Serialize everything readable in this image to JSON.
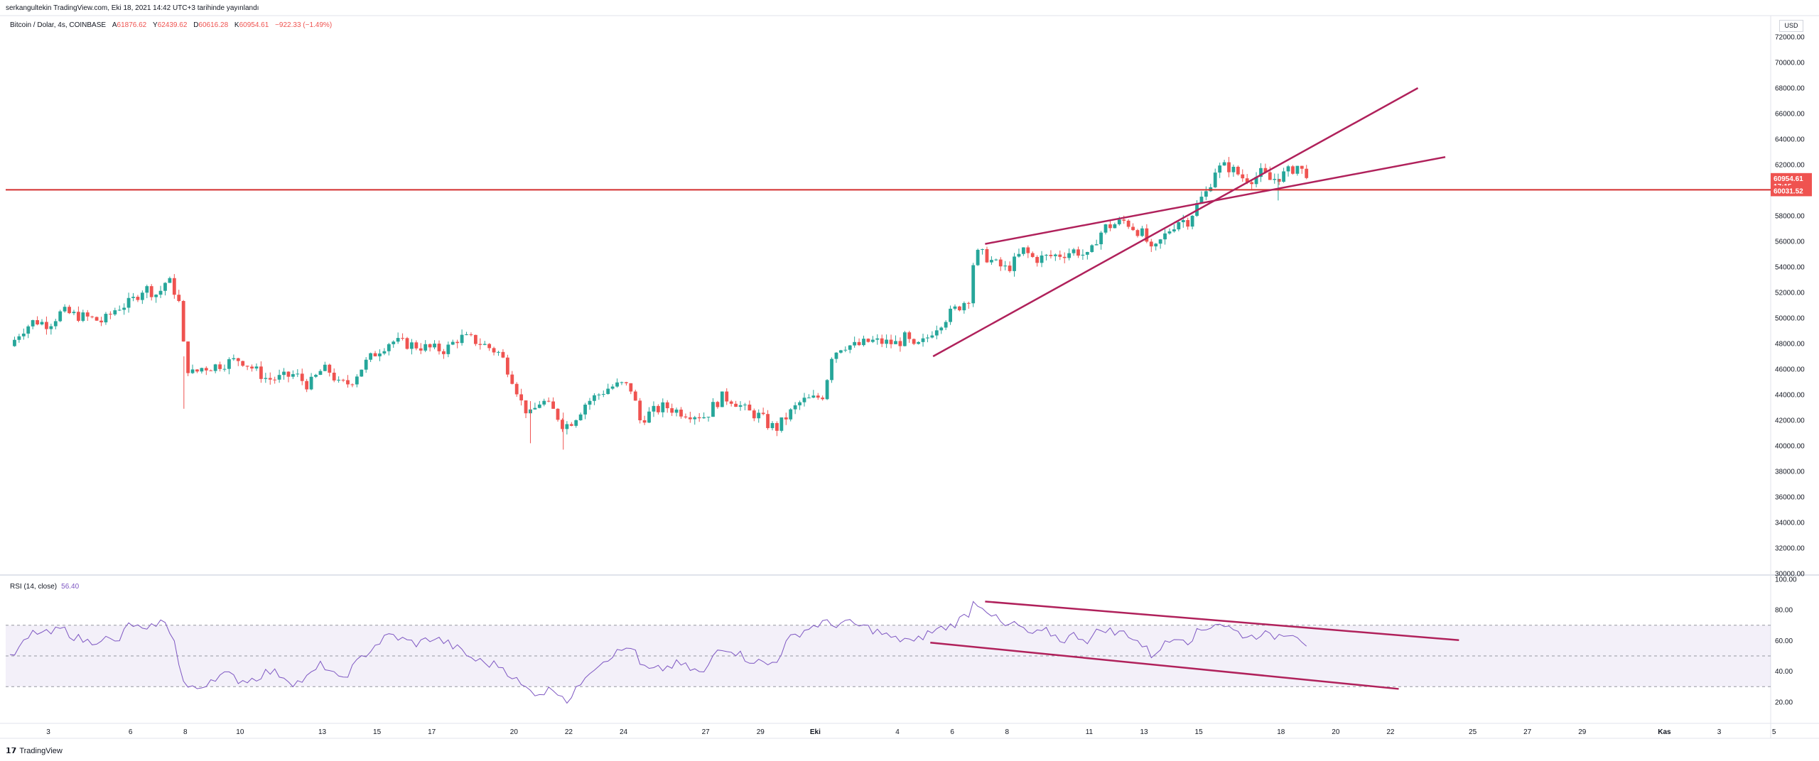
{
  "header": {
    "published": "serkangultekin TradingView.com, Eki 18, 2021 14:42 UTC+3 tarihinde yayınlandı",
    "symbol": "Bitcoin / Dolar, 4s, COINBASE",
    "open_label": "A",
    "open": "61876.62",
    "high_label": "Y",
    "high": "62439.62",
    "low_label": "D",
    "low": "60616.28",
    "close_label": "K",
    "close": "60954.61",
    "change": "−922.33 (−1.49%)",
    "currency": "USD"
  },
  "rsi_legend": {
    "label": "RSI (14, close)",
    "value": "56.40"
  },
  "footer": {
    "logo_mark": "𝟭𝟳",
    "logo_text": "TradingView"
  },
  "price_tags": [
    {
      "value": "60954.61",
      "text": [
        "60954.61",
        "17:15"
      ],
      "color": "#ef5350"
    },
    {
      "value": "60031.52",
      "text": [
        "60031.52"
      ],
      "color": "#ef5350"
    }
  ],
  "chart_data": [
    {
      "type": "candlestick",
      "title": "Bitcoin / Dolar, 4s, COINBASE",
      "ylim": [
        30000,
        72000
      ],
      "y_ticks": [
        "72000.00",
        "70000.00",
        "68000.00",
        "66000.00",
        "64000.00",
        "62000.00",
        "60000.00",
        "58000.00",
        "56000.00",
        "54000.00",
        "52000.00",
        "50000.00",
        "48000.00",
        "46000.00",
        "44000.00",
        "42000.00",
        "40000.00",
        "38000.00",
        "36000.00",
        "34000.00",
        "32000.00",
        "30000.00"
      ],
      "x_ticks": [
        {
          "label": "3",
          "day": 0
        },
        {
          "label": "6",
          "day": 3
        },
        {
          "label": "8",
          "day": 5
        },
        {
          "label": "10",
          "day": 7
        },
        {
          "label": "13",
          "day": 10
        },
        {
          "label": "15",
          "day": 12
        },
        {
          "label": "17",
          "day": 14
        },
        {
          "label": "20",
          "day": 17
        },
        {
          "label": "22",
          "day": 19
        },
        {
          "label": "24",
          "day": 21
        },
        {
          "label": "27",
          "day": 24
        },
        {
          "label": "29",
          "day": 26
        },
        {
          "label": "Eki",
          "day": 28
        },
        {
          "label": "4",
          "day": 31
        },
        {
          "label": "6",
          "day": 33
        },
        {
          "label": "8",
          "day": 35
        },
        {
          "label": "11",
          "day": 38
        },
        {
          "label": "13",
          "day": 40
        },
        {
          "label": "15",
          "day": 42
        },
        {
          "label": "18",
          "day": 45
        },
        {
          "label": "20",
          "day": 47
        },
        {
          "label": "22",
          "day": 49
        },
        {
          "label": "25",
          "day": 52
        },
        {
          "label": "27",
          "day": 54
        },
        {
          "label": "29",
          "day": 56
        },
        {
          "label": "Kas",
          "day": 59
        },
        {
          "label": "3",
          "day": 61
        },
        {
          "label": "5",
          "day": 63
        }
      ],
      "x_unit": "days since 3 Sep 2021 (4h candles)",
      "close_path": [
        [
          -1.4,
          47800
        ],
        [
          -1.0,
          49000
        ],
        [
          -0.5,
          49800
        ],
        [
          0,
          49500
        ],
        [
          0.5,
          50500
        ],
        [
          1,
          50200
        ],
        [
          1.5,
          50000
        ],
        [
          2,
          49700
        ],
        [
          2.5,
          50800
        ],
        [
          3,
          51200
        ],
        [
          3.5,
          52400
        ],
        [
          4,
          51800
        ],
        [
          4.3,
          52900
        ],
        [
          4.5,
          52700
        ],
        [
          4.8,
          51000
        ],
        [
          5.0,
          46300
        ],
        [
          5.3,
          45600
        ],
        [
          5.6,
          46100
        ],
        [
          6,
          46200
        ],
        [
          6.5,
          46500
        ],
        [
          7,
          46800
        ],
        [
          7.5,
          46000
        ],
        [
          8,
          45200
        ],
        [
          8.5,
          45300
        ],
        [
          9,
          45600
        ],
        [
          9.5,
          44700
        ],
        [
          10,
          46000
        ],
        [
          10.3,
          45800
        ],
        [
          10.6,
          44800
        ],
        [
          11,
          44900
        ],
        [
          11.5,
          46300
        ],
        [
          12,
          47400
        ],
        [
          12.5,
          48200
        ],
        [
          13,
          48000
        ],
        [
          13.5,
          47800
        ],
        [
          14,
          47600
        ],
        [
          14.5,
          47500
        ],
        [
          15,
          48500
        ],
        [
          15.5,
          48300
        ],
        [
          16,
          47800
        ],
        [
          16.5,
          47200
        ],
        [
          17,
          45000
        ],
        [
          17.3,
          43200
        ],
        [
          17.6,
          42400
        ],
        [
          18,
          43600
        ],
        [
          18.5,
          42600
        ],
        [
          18.8,
          41600
        ],
        [
          19,
          41700
        ],
        [
          19.3,
          42400
        ],
        [
          19.6,
          43300
        ],
        [
          20,
          43900
        ],
        [
          20.5,
          44600
        ],
        [
          21,
          44800
        ],
        [
          21.3,
          44400
        ],
        [
          21.6,
          42000
        ],
        [
          22,
          42600
        ],
        [
          22.5,
          43100
        ],
        [
          23,
          42700
        ],
        [
          23.5,
          42500
        ],
        [
          24,
          42300
        ],
        [
          24.3,
          43200
        ],
        [
          24.6,
          43800
        ],
        [
          25,
          43600
        ],
        [
          25.5,
          42700
        ],
        [
          26,
          42300
        ],
        [
          26.3,
          41600
        ],
        [
          26.6,
          41400
        ],
        [
          27,
          42400
        ],
        [
          27.5,
          43500
        ],
        [
          28,
          43700
        ],
        [
          28.3,
          44000
        ],
        [
          28.6,
          47100
        ],
        [
          29,
          47900
        ],
        [
          29.5,
          47800
        ],
        [
          30,
          48200
        ],
        [
          30.5,
          48100
        ],
        [
          31,
          48000
        ],
        [
          31.3,
          48500
        ],
        [
          31.6,
          47600
        ],
        [
          32,
          48200
        ],
        [
          32.3,
          49100
        ],
        [
          32.6,
          49700
        ],
        [
          33,
          50500
        ],
        [
          33.3,
          51000
        ],
        [
          33.6,
          51600
        ],
        [
          33.8,
          54800
        ],
        [
          34,
          55100
        ],
        [
          34.3,
          54700
        ],
        [
          34.6,
          54200
        ],
        [
          35,
          53800
        ],
        [
          35.3,
          54500
        ],
        [
          35.6,
          55300
        ],
        [
          36,
          54600
        ],
        [
          36.5,
          54800
        ],
        [
          37,
          55000
        ],
        [
          37.5,
          55300
        ],
        [
          38,
          54700
        ],
        [
          38.3,
          56400
        ],
        [
          38.6,
          57100
        ],
        [
          39,
          57400
        ],
        [
          39.3,
          57600
        ],
        [
          39.6,
          57100
        ],
        [
          40,
          56500
        ],
        [
          40.3,
          55000
        ],
        [
          40.6,
          56000
        ],
        [
          41,
          57100
        ],
        [
          41.3,
          57700
        ],
        [
          41.6,
          57600
        ],
        [
          42,
          59100
        ],
        [
          42.3,
          59900
        ],
        [
          42.6,
          61600
        ],
        [
          43,
          61900
        ],
        [
          43.3,
          61500
        ],
        [
          43.6,
          61000
        ],
        [
          44,
          60900
        ],
        [
          44.3,
          61400
        ],
        [
          44.6,
          60800
        ],
        [
          45,
          61100
        ],
        [
          45.3,
          61500
        ],
        [
          45.6,
          61900
        ],
        [
          46,
          60954.61
        ]
      ],
      "channel_lines": [
        {
          "from": [
            32.3,
            47000
          ],
          "to": [
            50.0,
            68000
          ]
        },
        {
          "from": [
            34.2,
            55800
          ],
          "to": [
            51.0,
            62600
          ]
        }
      ],
      "horizontal_line": 60031.52,
      "last_price": 60954.61,
      "currency": "USD"
    },
    {
      "type": "line",
      "title": "RSI (14, close)",
      "ylim": [
        10,
        100
      ],
      "y_ticks": [
        "100.00",
        "80.00",
        "60.00",
        "40.00",
        "20.00"
      ],
      "bands": {
        "upper": 70,
        "middle": 50,
        "lower": 30
      },
      "series_path": [
        [
          -1.4,
          48
        ],
        [
          -1.0,
          56
        ],
        [
          -0.5,
          66
        ],
        [
          0,
          64
        ],
        [
          0.5,
          68
        ],
        [
          1,
          62
        ],
        [
          1.5,
          59
        ],
        [
          2,
          62
        ],
        [
          2.5,
          58
        ],
        [
          3,
          72
        ],
        [
          3.3,
          68
        ],
        [
          3.6,
          65
        ],
        [
          4,
          73
        ],
        [
          4.3,
          70
        ],
        [
          4.6,
          62
        ],
        [
          4.8,
          40
        ],
        [
          5.0,
          30
        ],
        [
          5.3,
          28
        ],
        [
          5.6,
          30
        ],
        [
          6,
          36
        ],
        [
          6.5,
          38
        ],
        [
          7,
          34
        ],
        [
          7.5,
          35
        ],
        [
          8,
          40
        ],
        [
          8.5,
          38
        ],
        [
          9,
          32
        ],
        [
          9.5,
          36
        ],
        [
          10,
          45
        ],
        [
          10.3,
          40
        ],
        [
          10.6,
          34
        ],
        [
          11,
          40
        ],
        [
          11.5,
          50
        ],
        [
          12,
          58
        ],
        [
          12.5,
          64
        ],
        [
          13,
          60
        ],
        [
          13.5,
          58
        ],
        [
          14,
          62
        ],
        [
          14.5,
          59
        ],
        [
          15,
          54
        ],
        [
          15.5,
          48
        ],
        [
          16,
          45
        ],
        [
          16.5,
          44
        ],
        [
          17,
          36
        ],
        [
          17.3,
          30
        ],
        [
          17.6,
          27
        ],
        [
          18,
          26
        ],
        [
          18.5,
          29
        ],
        [
          18.8,
          24
        ],
        [
          19,
          20
        ],
        [
          19.3,
          28
        ],
        [
          19.6,
          38
        ],
        [
          20,
          44
        ],
        [
          20.5,
          50
        ],
        [
          21,
          54
        ],
        [
          21.3,
          57
        ],
        [
          21.6,
          44
        ],
        [
          22,
          40
        ],
        [
          22.5,
          42
        ],
        [
          23,
          45
        ],
        [
          23.5,
          41
        ],
        [
          24,
          38
        ],
        [
          24.3,
          52
        ],
        [
          24.6,
          56
        ],
        [
          25,
          54
        ],
        [
          25.5,
          48
        ],
        [
          26,
          46
        ],
        [
          26.3,
          44
        ],
        [
          26.6,
          48
        ],
        [
          27,
          60
        ],
        [
          27.5,
          66
        ],
        [
          28,
          70
        ],
        [
          28.3,
          72
        ],
        [
          28.6,
          70
        ],
        [
          29,
          72
        ],
        [
          29.5,
          70
        ],
        [
          30,
          68
        ],
        [
          30.5,
          64
        ],
        [
          31,
          60
        ],
        [
          31.3,
          62
        ],
        [
          31.6,
          58
        ],
        [
          32,
          64
        ],
        [
          32.3,
          66
        ],
        [
          32.6,
          68
        ],
        [
          33,
          70
        ],
        [
          33.3,
          74
        ],
        [
          33.6,
          78
        ],
        [
          33.8,
          86
        ],
        [
          34,
          84
        ],
        [
          34.3,
          80
        ],
        [
          34.6,
          74
        ],
        [
          35,
          68
        ],
        [
          35.3,
          72
        ],
        [
          35.6,
          66
        ],
        [
          36,
          64
        ],
        [
          36.5,
          66
        ],
        [
          37,
          60
        ],
        [
          37.5,
          64
        ],
        [
          38,
          60
        ],
        [
          38.3,
          66
        ],
        [
          38.6,
          68
        ],
        [
          39,
          64
        ],
        [
          39.3,
          66
        ],
        [
          39.6,
          62
        ],
        [
          40,
          56
        ],
        [
          40.3,
          50
        ],
        [
          40.6,
          56
        ],
        [
          41,
          60
        ],
        [
          41.3,
          64
        ],
        [
          41.6,
          60
        ],
        [
          42,
          66
        ],
        [
          42.3,
          68
        ],
        [
          42.6,
          72
        ],
        [
          43,
          70
        ],
        [
          43.3,
          66
        ],
        [
          43.6,
          64
        ],
        [
          44,
          62
        ],
        [
          44.3,
          66
        ],
        [
          44.6,
          62
        ],
        [
          45,
          64
        ],
        [
          45.3,
          66
        ],
        [
          45.6,
          64
        ],
        [
          46,
          56.4
        ]
      ],
      "trend_lines": [
        {
          "from": [
            34.2,
            85.5
          ],
          "to": [
            51.5,
            60.3
          ]
        },
        {
          "from": [
            32.2,
            58.7
          ],
          "to": [
            49.3,
            28.5
          ]
        }
      ]
    }
  ]
}
